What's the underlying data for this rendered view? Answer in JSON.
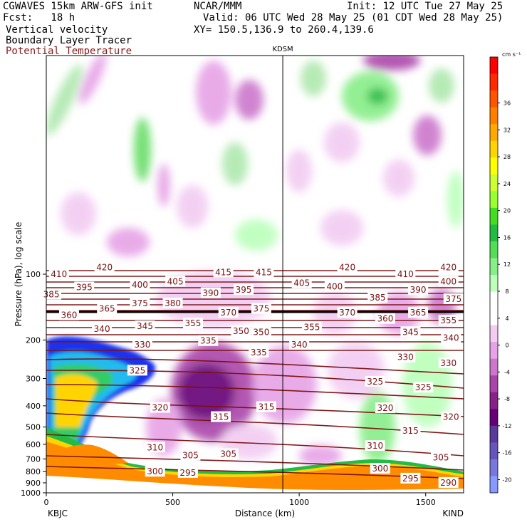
{
  "header": {
    "model": "CGWAVES 15km ARW-GFS init",
    "org": "NCAR/MMM",
    "init": "Init: 12 UTC Tue 27 May 25",
    "fcst": "Fcst:   18 h",
    "valid": "Valid: 06 UTC Wed 28 May 25 (01 CDT Wed 28 May 25)",
    "fields": [
      "Vertical velocity",
      "Boundary Layer Tracer"
    ],
    "field_contour": "Potential Temperature",
    "xy": "XY= 150.5,136.9 to 260.4,139.6"
  },
  "chart_data": {
    "type": "heatmap",
    "title": "KDSM",
    "xlabel": "Distance (km)",
    "ylabel": "Pressure (hPa), log scale",
    "xlim": [
      0,
      1650
    ],
    "ylim": [
      1000,
      10
    ],
    "x_ticks": [
      "0",
      "500",
      "1000",
      "1500"
    ],
    "y_ticks": [
      "100",
      "200",
      "300",
      "400",
      "500",
      "600",
      "700",
      "800",
      "900",
      "1000"
    ],
    "endpoint_labels": [
      "KBJC",
      "KIND"
    ],
    "marker_line": {
      "label": "KDSM",
      "x_km": 935
    },
    "colorbar": {
      "unit": "cm s⁻¹",
      "ticks": [
        "36",
        "32",
        "28",
        "24",
        "20",
        "16",
        "12",
        "8",
        "4",
        "0",
        "-4",
        "-8",
        "-12",
        "-16",
        "-20"
      ],
      "colors": [
        "#ff0000",
        "#ff2a00",
        "#ff5500",
        "#ff7f00",
        "#ffaa00",
        "#ffd400",
        "#ffff00",
        "#ccff33",
        "#99ff33",
        "#44dd22",
        "#22bb44",
        "#55dd55",
        "#88ee88",
        "#bbffbb",
        "#ffffff",
        "#ffffff",
        "#f2ccf2",
        "#e6a3e6",
        "#cc77cc",
        "#aa44aa",
        "#882288",
        "#660077",
        "#5a3a99",
        "#6655bb",
        "#7777dd",
        "#8899ff"
      ]
    },
    "theta_labels": [
      {
        "value": "420",
        "x_km": 230,
        "p": 93
      },
      {
        "value": "410",
        "x_km": 50,
        "p": 100
      },
      {
        "value": "405",
        "x_km": 510,
        "p": 108
      },
      {
        "value": "415",
        "x_km": 700,
        "p": 98
      },
      {
        "value": "415",
        "x_km": 860,
        "p": 98
      },
      {
        "value": "420",
        "x_km": 1190,
        "p": 93
      },
      {
        "value": "410",
        "x_km": 1420,
        "p": 100
      },
      {
        "value": "420",
        "x_km": 1590,
        "p": 93
      },
      {
        "value": "400",
        "x_km": 1590,
        "p": 108
      },
      {
        "value": "395",
        "x_km": 150,
        "p": 115
      },
      {
        "value": "400",
        "x_km": 370,
        "p": 112
      },
      {
        "value": "390",
        "x_km": 650,
        "p": 122
      },
      {
        "value": "395",
        "x_km": 780,
        "p": 118
      },
      {
        "value": "405",
        "x_km": 1010,
        "p": 110
      },
      {
        "value": "400",
        "x_km": 1140,
        "p": 114
      },
      {
        "value": "390",
        "x_km": 1470,
        "p": 118
      },
      {
        "value": "385",
        "x_km": 20,
        "p": 124
      },
      {
        "value": "385",
        "x_km": 1310,
        "p": 128
      },
      {
        "value": "375",
        "x_km": 1610,
        "p": 130
      },
      {
        "value": "375",
        "x_km": 370,
        "p": 136
      },
      {
        "value": "380",
        "x_km": 500,
        "p": 136
      },
      {
        "value": "370",
        "x_km": 720,
        "p": 150
      },
      {
        "value": "375",
        "x_km": 850,
        "p": 144
      },
      {
        "value": "370",
        "x_km": 1190,
        "p": 150
      },
      {
        "value": "365",
        "x_km": 240,
        "p": 144
      },
      {
        "value": "360",
        "x_km": 90,
        "p": 154
      },
      {
        "value": "360",
        "x_km": 1340,
        "p": 160
      },
      {
        "value": "365",
        "x_km": 1470,
        "p": 150
      },
      {
        "value": "355",
        "x_km": 1590,
        "p": 163
      },
      {
        "value": "340",
        "x_km": 220,
        "p": 178
      },
      {
        "value": "345",
        "x_km": 390,
        "p": 173
      },
      {
        "value": "355",
        "x_km": 580,
        "p": 168
      },
      {
        "value": "350",
        "x_km": 770,
        "p": 182
      },
      {
        "value": "350",
        "x_km": 850,
        "p": 184
      },
      {
        "value": "355",
        "x_km": 1050,
        "p": 175
      },
      {
        "value": "345",
        "x_km": 1440,
        "p": 184
      },
      {
        "value": "340",
        "x_km": 1600,
        "p": 196
      },
      {
        "value": "340",
        "x_km": 1000,
        "p": 210
      },
      {
        "value": "330",
        "x_km": 380,
        "p": 210
      },
      {
        "value": "335",
        "x_km": 640,
        "p": 202
      },
      {
        "value": "335",
        "x_km": 840,
        "p": 228
      },
      {
        "value": "330",
        "x_km": 1420,
        "p": 240
      },
      {
        "value": "330",
        "x_km": 1590,
        "p": 255
      },
      {
        "value": "325",
        "x_km": 360,
        "p": 276
      },
      {
        "value": "325",
        "x_km": 1300,
        "p": 310
      },
      {
        "value": "325",
        "x_km": 1490,
        "p": 330
      },
      {
        "value": "320",
        "x_km": 450,
        "p": 408
      },
      {
        "value": "315",
        "x_km": 690,
        "p": 450
      },
      {
        "value": "315",
        "x_km": 870,
        "p": 405
      },
      {
        "value": "320",
        "x_km": 1340,
        "p": 410
      },
      {
        "value": "320",
        "x_km": 1600,
        "p": 450
      },
      {
        "value": "315",
        "x_km": 1440,
        "p": 520
      },
      {
        "value": "310",
        "x_km": 430,
        "p": 620
      },
      {
        "value": "305",
        "x_km": 570,
        "p": 675
      },
      {
        "value": "305",
        "x_km": 720,
        "p": 665
      },
      {
        "value": "310",
        "x_km": 1300,
        "p": 610
      },
      {
        "value": "305",
        "x_km": 1560,
        "p": 690
      },
      {
        "value": "300",
        "x_km": 430,
        "p": 800
      },
      {
        "value": "295",
        "x_km": 560,
        "p": 810
      },
      {
        "value": "300",
        "x_km": 1320,
        "p": 775
      },
      {
        "value": "295",
        "x_km": 1440,
        "p": 860
      },
      {
        "value": "290",
        "x_km": 1590,
        "p": 900
      }
    ]
  }
}
